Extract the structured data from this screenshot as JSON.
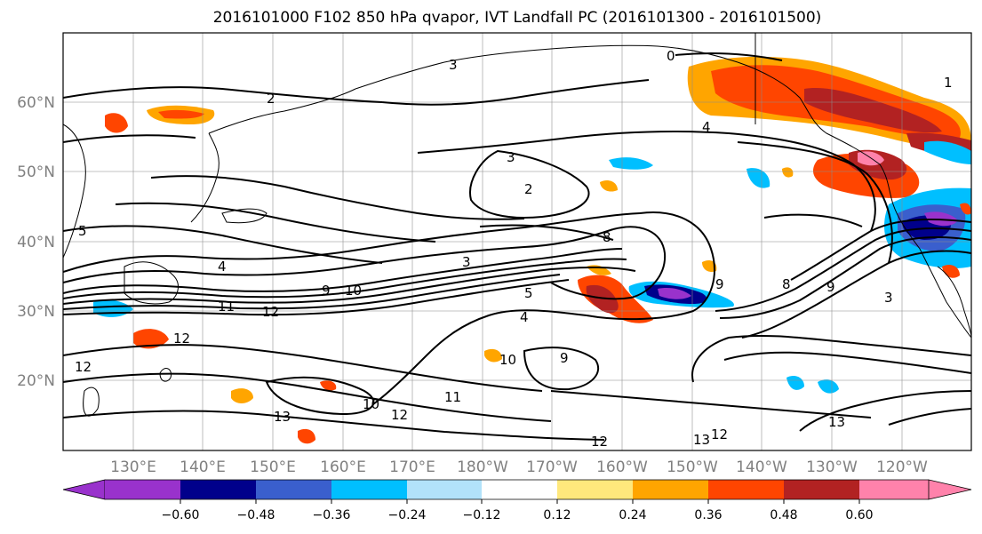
{
  "title": "2016101000 F102 850 hPa qvapor, IVT Landfall PC (2016101300 - 2016101500)",
  "map": {
    "lon_range": [
      120,
      250
    ],
    "lat_range": [
      10,
      70
    ],
    "lon_ticks": [
      {
        "lon": 130,
        "label": "130°E"
      },
      {
        "lon": 140,
        "label": "140°E"
      },
      {
        "lon": 150,
        "label": "150°E"
      },
      {
        "lon": 160,
        "label": "160°E"
      },
      {
        "lon": 170,
        "label": "170°E"
      },
      {
        "lon": 180,
        "label": "180°W"
      },
      {
        "lon": 190,
        "label": "170°W"
      },
      {
        "lon": 200,
        "label": "160°W"
      },
      {
        "lon": 210,
        "label": "150°W"
      },
      {
        "lon": 220,
        "label": "140°W"
      },
      {
        "lon": 230,
        "label": "130°W"
      },
      {
        "lon": 240,
        "label": "120°W"
      }
    ],
    "lat_ticks": [
      {
        "lat": 20,
        "label": "20°N"
      },
      {
        "lat": 30,
        "label": "30°N"
      },
      {
        "lat": 40,
        "label": "40°N"
      },
      {
        "lat": 50,
        "label": "50°N"
      },
      {
        "lat": 60,
        "label": "60°N"
      }
    ],
    "contour_labels": [
      "0",
      "1",
      "2",
      "3",
      "4",
      "5",
      "8",
      "9",
      "10",
      "11",
      "12",
      "13"
    ]
  },
  "colorbar": {
    "colors": [
      "#9932cc",
      "#00008b",
      "#3a5fcd",
      "#00bfff",
      "#b2e2fa",
      "#ffffff",
      "#ffe87c",
      "#ffa500",
      "#ff4500",
      "#b22222",
      "#ff82ab"
    ],
    "labels": [
      "−0.60",
      "−0.48",
      "−0.36",
      "−0.24",
      "−0.12",
      "0.12",
      "0.24",
      "0.36",
      "0.48",
      "0.60"
    ]
  }
}
